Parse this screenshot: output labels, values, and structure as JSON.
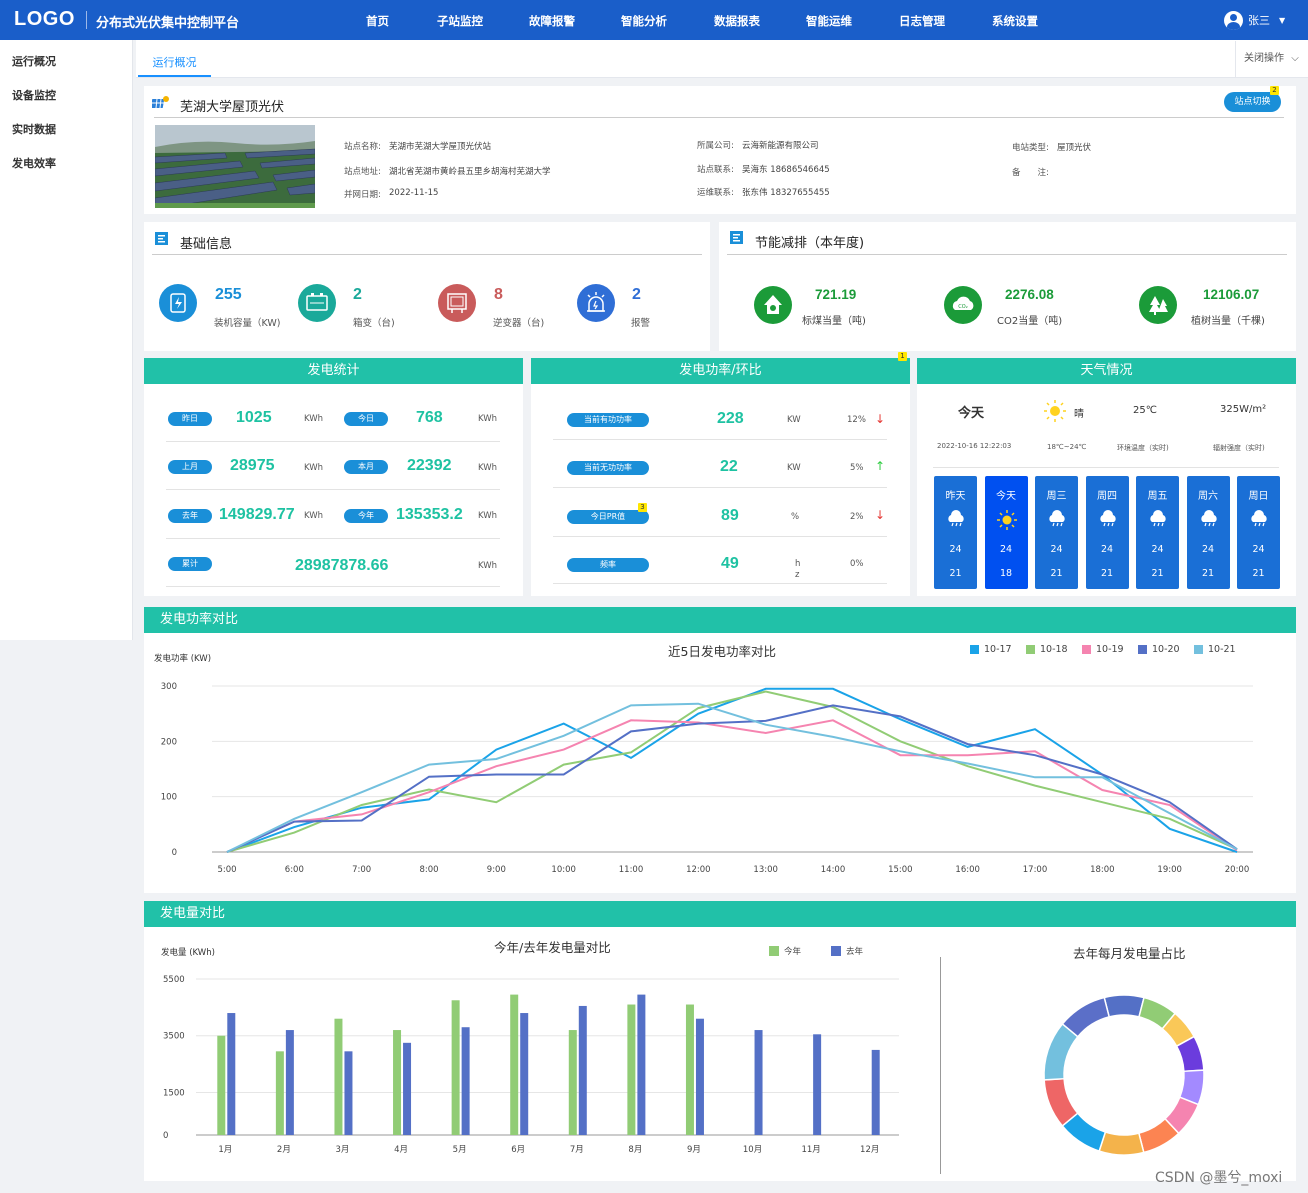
{
  "header": {
    "logo": "LOGO",
    "app_title": "分布式光伏集中控制平台",
    "nav": [
      "首页",
      "子站监控",
      "故障报警",
      "智能分析",
      "数据报表",
      "智能运维",
      "日志管理",
      "系统设置"
    ],
    "user": "张三"
  },
  "sidebar": {
    "items": [
      "运行概况",
      "设备监控",
      "实时数据",
      "发电效率"
    ]
  },
  "tabs": {
    "active": "运行概况",
    "close_ops": "关闭操作"
  },
  "station": {
    "title": "芜湖大学屋顶光伏",
    "switch_btn": "站点切换",
    "switch_badge": "2",
    "fields": [
      {
        "label": "站点名称:",
        "value": "芜湖市芜湖大学屋顶光伏站"
      },
      {
        "label": "站点地址:",
        "value": "湖北省芜湖市黄岭县五里乡胡海村芜湖大学"
      },
      {
        "label": "并网日期:",
        "value": "2022-11-15"
      },
      {
        "label": "所属公司:",
        "value": "云海新能源有限公司"
      },
      {
        "label": "站点联系:",
        "value": "吴海东 18686546645"
      },
      {
        "label": "运维联系:",
        "value": "张东伟 18327655455"
      },
      {
        "label": "电站类型:",
        "value": "屋顶光伏"
      },
      {
        "label": "备　　注:",
        "value": ""
      }
    ]
  },
  "basic": {
    "title": "基础信息",
    "items": [
      {
        "num": "255",
        "label": "装机容量（KW)",
        "color": "#1a8fd8"
      },
      {
        "num": "2",
        "label": "箱变（台)",
        "color": "#1aa99a"
      },
      {
        "num": "8",
        "label": "逆变器（台)",
        "color": "#c95b5b"
      },
      {
        "num": "2",
        "label": "报警",
        "color": "#2f6ed6"
      }
    ]
  },
  "eco": {
    "title": "节能减排（本年度)",
    "items": [
      {
        "num": "721.19",
        "label": "标煤当量（吨)"
      },
      {
        "num": "2276.08",
        "label": "CO2当量（吨)"
      },
      {
        "num": "12106.07",
        "label": "植树当量（千棵)"
      }
    ]
  },
  "gen_stats": {
    "title": "发电统计",
    "rows": [
      {
        "l1": "昨日",
        "v1": "1025",
        "u1": "KWh",
        "l2": "今日",
        "v2": "768",
        "u2": "KWh"
      },
      {
        "l1": "上月",
        "v1": "28975",
        "u1": "KWh",
        "l2": "本月",
        "v2": "22392",
        "u2": "KWh"
      },
      {
        "l1": "去年",
        "v1": "149829.77",
        "u1": "KWh",
        "l2": "今年",
        "v2": "135353.2",
        "u2": "KWh"
      }
    ],
    "total": {
      "label": "累计",
      "value": "28987878.66",
      "unit": "KWh"
    }
  },
  "power_ratio": {
    "title": "发电功率/环比",
    "badge": "1",
    "rows": [
      {
        "label": "当前有功功率",
        "value": "228",
        "unit": "KW",
        "pct": "12%",
        "dir": "↓"
      },
      {
        "label": "当前无功功率",
        "value": "22",
        "unit": "KW",
        "pct": "5%",
        "dir": "↑"
      },
      {
        "label": "今日PR值",
        "value": "89",
        "unit": "%",
        "pct": "2%",
        "dir": "↓",
        "badge": "3"
      },
      {
        "label": "频率",
        "value": "49",
        "unit": "h\nz",
        "pct": "0%",
        "dir": ""
      }
    ]
  },
  "weather": {
    "title": "天气情况",
    "today": "今天",
    "cond": "晴",
    "temp": "25℃",
    "irr": "325W/m²",
    "time": "2022-10-16 12:22:03",
    "range": "18℃~24℃",
    "temp_label": "环境温度（实时)",
    "irr_label": "辐射强度（实时)",
    "days": [
      {
        "name": "昨天",
        "hi": "24",
        "lo": "21",
        "icon": "cloud-rain-icon"
      },
      {
        "name": "今天",
        "hi": "24",
        "lo": "18",
        "icon": "sun-icon"
      },
      {
        "name": "周三",
        "hi": "24",
        "lo": "21",
        "icon": "cloud-rain-icon"
      },
      {
        "name": "周四",
        "hi": "24",
        "lo": "21",
        "icon": "cloud-rain-icon"
      },
      {
        "name": "周五",
        "hi": "24",
        "lo": "21",
        "icon": "cloud-rain-icon"
      },
      {
        "name": "周六",
        "hi": "24",
        "lo": "21",
        "icon": "cloud-rain-icon"
      },
      {
        "name": "周日",
        "hi": "24",
        "lo": "21",
        "icon": "cloud-rain-icon"
      }
    ]
  },
  "power_compare": {
    "section": "发电功率对比"
  },
  "energy_compare": {
    "section": "发电量对比"
  },
  "chart_data": [
    {
      "type": "line",
      "title": "近5日发电功率对比",
      "ylabel": "发电功率 (KW)",
      "ylim": [
        0,
        300
      ],
      "yticks": [
        0,
        100,
        200,
        300
      ],
      "x": [
        "5:00",
        "6:00",
        "7:00",
        "8:00",
        "9:00",
        "10:00",
        "11:00",
        "12:00",
        "13:00",
        "14:00",
        "15:00",
        "16:00",
        "17:00",
        "18:00",
        "19:00",
        "20:00"
      ],
      "legend_position": "top-right",
      "series": [
        {
          "name": "10-17",
          "color": "#1aa3e8",
          "values": [
            0,
            45,
            80,
            95,
            185,
            232,
            170,
            250,
            295,
            295,
            240,
            190,
            222,
            140,
            42,
            0
          ]
        },
        {
          "name": "10-18",
          "color": "#91cc75",
          "values": [
            0,
            35,
            85,
            113,
            90,
            158,
            180,
            260,
            290,
            262,
            200,
            155,
            120,
            90,
            60,
            5
          ]
        },
        {
          "name": "10-19",
          "color": "#f584b0",
          "values": [
            0,
            55,
            68,
            108,
            155,
            185,
            238,
            234,
            215,
            238,
            175,
            175,
            182,
            112,
            85,
            3
          ]
        },
        {
          "name": "10-20",
          "color": "#5470c6",
          "values": [
            0,
            55,
            57,
            136,
            140,
            140,
            218,
            232,
            237,
            265,
            245,
            195,
            175,
            140,
            90,
            5
          ]
        },
        {
          "name": "10-21",
          "color": "#73c0de",
          "values": [
            0,
            60,
            108,
            158,
            168,
            210,
            265,
            268,
            230,
            208,
            182,
            160,
            135,
            135,
            70,
            5
          ]
        }
      ]
    },
    {
      "type": "bar",
      "title": "今年/去年发电量对比",
      "ylabel": "发电量 (KWh)",
      "ylim": [
        0,
        5500
      ],
      "yticks": [
        0,
        1500,
        3500,
        5500
      ],
      "categories": [
        "1月",
        "2月",
        "3月",
        "4月",
        "5月",
        "6月",
        "7月",
        "8月",
        "9月",
        "10月",
        "11月",
        "12月"
      ],
      "legend_position": "top-right",
      "series": [
        {
          "name": "今年",
          "color": "#91cc75",
          "values": [
            3500,
            2950,
            4100,
            3700,
            4750,
            4950,
            3700,
            4600,
            4600,
            null,
            null,
            null
          ]
        },
        {
          "name": "去年",
          "color": "#5470c6",
          "values": [
            4300,
            3700,
            2950,
            3250,
            3800,
            4300,
            4550,
            4950,
            4100,
            3700,
            3550,
            3000
          ]
        }
      ]
    },
    {
      "type": "pie",
      "title": "去年每月发电量占比",
      "values": [
        8,
        7,
        6,
        7,
        7,
        7,
        8,
        9,
        9,
        10,
        12,
        10
      ],
      "colors": [
        "#5470c6",
        "#91cc75",
        "#fac858",
        "#6b3cdd",
        "#a38aff",
        "#f584b0",
        "#fc8452",
        "#f4b34b",
        "#1aa3e8",
        "#ee6666",
        "#73c0de",
        "#5b6fc8"
      ]
    }
  ]
}
